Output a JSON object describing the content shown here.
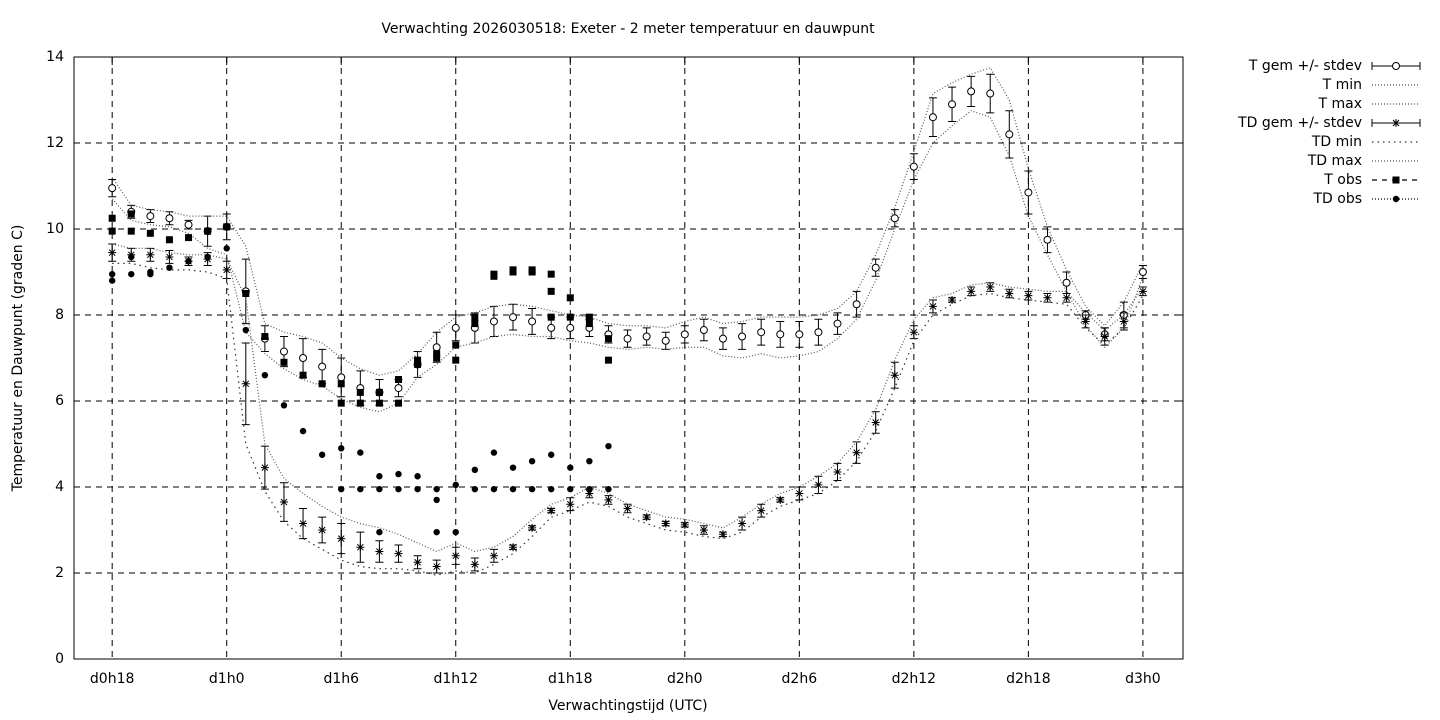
{
  "chart_data": {
    "type": "errorbar-line",
    "title": "Verwachting 2026030518: Exeter - 2 meter temperatuur en dauwpunt",
    "x_label": "Verwachtingstijd (UTC)",
    "y_label": "Temperatuur en Dauwpunt (graden C)",
    "xlim": [
      16,
      74.1
    ],
    "ylim": [
      0,
      14
    ],
    "xticks": [
      {
        "value": 18,
        "label": "d0h18"
      },
      {
        "value": 24,
        "label": "d1h0"
      },
      {
        "value": 30,
        "label": "d1h6"
      },
      {
        "value": 36,
        "label": "d1h12"
      },
      {
        "value": 42,
        "label": "d1h18"
      },
      {
        "value": 48,
        "label": "d2h0"
      },
      {
        "value": 54,
        "label": "d2h6"
      },
      {
        "value": 60,
        "label": "d2h12"
      },
      {
        "value": 66,
        "label": "d2h18"
      },
      {
        "value": 72,
        "label": "d3h0"
      }
    ],
    "yticks": [
      0,
      2,
      4,
      6,
      8,
      10,
      12,
      14
    ],
    "grid": true,
    "legend": "outside-top-right",
    "x": [
      18,
      19,
      20,
      21,
      22,
      23,
      24,
      25,
      26,
      27,
      28,
      29,
      30,
      31,
      32,
      33,
      34,
      35,
      36,
      37,
      38,
      39,
      40,
      41,
      42,
      43,
      44,
      45,
      46,
      47,
      48,
      49,
      50,
      51,
      52,
      53,
      54,
      55,
      56,
      57,
      58,
      59,
      60,
      61,
      62,
      63,
      64,
      65,
      66,
      67,
      68,
      69,
      70,
      71,
      72
    ],
    "series": [
      {
        "name": "T gem +/- stdev",
        "kind": "errorbar",
        "marker": "circle",
        "color": "#000000",
        "values": [
          10.95,
          10.4,
          10.3,
          10.25,
          10.1,
          9.95,
          10.05,
          8.55,
          7.45,
          7.15,
          7.0,
          6.8,
          6.55,
          6.3,
          6.2,
          6.3,
          6.85,
          7.25,
          7.7,
          7.7,
          7.85,
          7.95,
          7.85,
          7.7,
          7.7,
          7.7,
          7.55,
          7.45,
          7.5,
          7.4,
          7.55,
          7.65,
          7.45,
          7.5,
          7.6,
          7.55,
          7.55,
          7.6,
          7.8,
          8.25,
          9.1,
          10.25,
          11.45,
          12.6,
          12.9,
          13.2,
          13.15,
          12.2,
          10.85,
          9.75,
          8.75,
          8.0,
          7.55,
          8.0,
          9.0
        ],
        "errors": [
          0.2,
          0.15,
          0.15,
          0.15,
          0.1,
          0.35,
          0.3,
          0.75,
          0.3,
          0.35,
          0.45,
          0.4,
          0.45,
          0.4,
          0.3,
          0.2,
          0.3,
          0.35,
          0.3,
          0.35,
          0.35,
          0.3,
          0.3,
          0.25,
          0.25,
          0.2,
          0.2,
          0.2,
          0.2,
          0.2,
          0.2,
          0.25,
          0.25,
          0.3,
          0.3,
          0.3,
          0.3,
          0.3,
          0.25,
          0.3,
          0.2,
          0.2,
          0.3,
          0.45,
          0.4,
          0.35,
          0.45,
          0.55,
          0.5,
          0.3,
          0.25,
          0.1,
          0.15,
          0.3,
          0.15
        ]
      },
      {
        "name": "T min",
        "kind": "line",
        "line_style": "dotted",
        "color": "#555555",
        "values": [
          10.7,
          10.2,
          10.1,
          10.05,
          9.9,
          9.55,
          9.4,
          7.6,
          7.1,
          6.75,
          6.5,
          6.35,
          6.05,
          5.85,
          5.75,
          5.95,
          6.55,
          6.85,
          7.25,
          7.35,
          7.5,
          7.55,
          7.5,
          7.5,
          7.4,
          7.35,
          7.25,
          7.2,
          7.25,
          7.2,
          7.25,
          7.25,
          7.05,
          7.0,
          7.1,
          7.0,
          7.05,
          7.15,
          7.45,
          7.9,
          8.8,
          10.0,
          11.15,
          12.0,
          12.4,
          12.75,
          12.6,
          11.7,
          10.3,
          9.4,
          8.55,
          7.75,
          7.25,
          7.7,
          8.9
        ]
      },
      {
        "name": "T max",
        "kind": "line",
        "line_style": "dotted",
        "color": "#555555",
        "values": [
          11.2,
          10.55,
          10.45,
          10.4,
          10.3,
          10.3,
          10.3,
          9.6,
          7.8,
          7.6,
          7.5,
          7.35,
          7.0,
          6.75,
          6.6,
          6.7,
          7.1,
          7.6,
          7.95,
          8.05,
          8.2,
          8.25,
          8.2,
          8.1,
          8.0,
          7.95,
          7.8,
          7.75,
          7.75,
          7.7,
          7.85,
          7.95,
          7.8,
          7.85,
          7.95,
          7.95,
          7.95,
          8.0,
          8.15,
          8.55,
          9.4,
          10.5,
          11.8,
          13.15,
          13.4,
          13.6,
          13.75,
          13.0,
          11.4,
          10.05,
          9.05,
          8.2,
          7.75,
          8.3,
          9.2
        ]
      },
      {
        "name": "TD gem +/- stdev",
        "kind": "errorbar",
        "marker": "asterisk",
        "color": "#000000",
        "values": [
          9.45,
          9.4,
          9.4,
          9.35,
          9.25,
          9.3,
          9.05,
          6.4,
          4.45,
          3.65,
          3.15,
          3.0,
          2.8,
          2.6,
          2.5,
          2.45,
          2.25,
          2.15,
          2.4,
          2.2,
          2.4,
          2.6,
          3.05,
          3.45,
          3.6,
          3.85,
          3.7,
          3.5,
          3.3,
          3.15,
          3.12,
          3.0,
          2.9,
          3.15,
          3.45,
          3.7,
          3.85,
          4.05,
          4.35,
          4.8,
          5.5,
          6.6,
          7.6,
          8.2,
          8.35,
          8.55,
          8.65,
          8.5,
          8.45,
          8.4,
          8.4,
          7.85,
          7.5,
          7.85,
          8.55
        ],
        "errors": [
          0.2,
          0.15,
          0.15,
          0.15,
          0.1,
          0.15,
          0.2,
          0.95,
          0.5,
          0.45,
          0.35,
          0.3,
          0.35,
          0.35,
          0.25,
          0.2,
          0.15,
          0.15,
          0.2,
          0.15,
          0.15,
          0.05,
          0.05,
          0.05,
          0.15,
          0.1,
          0.1,
          0.1,
          0.05,
          0.05,
          0.05,
          0.1,
          0.05,
          0.15,
          0.15,
          0.05,
          0.15,
          0.2,
          0.2,
          0.25,
          0.25,
          0.3,
          0.15,
          0.15,
          0.05,
          0.1,
          0.1,
          0.1,
          0.1,
          0.1,
          0.1,
          0.15,
          0.2,
          0.2,
          0.1
        ]
      },
      {
        "name": "TD min",
        "kind": "line",
        "line_style": "sparse-dotted",
        "color": "#333333",
        "values": [
          9.2,
          9.2,
          9.1,
          9.05,
          9.05,
          9.0,
          8.85,
          5.0,
          3.9,
          3.2,
          2.8,
          2.55,
          2.3,
          2.15,
          2.1,
          2.1,
          2.05,
          1.95,
          2.05,
          2.0,
          2.2,
          2.45,
          2.85,
          3.3,
          3.45,
          3.65,
          3.55,
          3.3,
          3.15,
          3.0,
          2.95,
          2.85,
          2.8,
          2.95,
          3.3,
          3.55,
          3.7,
          3.85,
          4.15,
          4.6,
          5.3,
          6.3,
          7.4,
          8.0,
          8.25,
          8.45,
          8.5,
          8.4,
          8.35,
          8.3,
          8.25,
          7.7,
          7.3,
          7.7,
          8.45
        ]
      },
      {
        "name": "TD max",
        "kind": "line",
        "line_style": "dotted",
        "color": "#555555",
        "values": [
          9.65,
          9.55,
          9.55,
          9.45,
          9.4,
          9.4,
          9.3,
          8.4,
          5.0,
          4.2,
          3.85,
          3.55,
          3.3,
          3.15,
          3.05,
          2.9,
          2.7,
          2.5,
          2.7,
          2.5,
          2.6,
          2.85,
          3.25,
          3.6,
          3.75,
          4.0,
          3.85,
          3.6,
          3.45,
          3.3,
          3.25,
          3.15,
          3.05,
          3.3,
          3.6,
          3.85,
          4.0,
          4.25,
          4.55,
          5.05,
          5.8,
          6.95,
          7.9,
          8.4,
          8.5,
          8.7,
          8.75,
          8.65,
          8.6,
          8.55,
          8.55,
          8.05,
          7.65,
          8.0,
          8.65
        ]
      },
      {
        "name": "T obs",
        "kind": "points",
        "marker": "square",
        "line_style": "dashed",
        "color": "#000000",
        "x": [
          18,
          18,
          19,
          19,
          20,
          21,
          22,
          23,
          24,
          25,
          26,
          27,
          28,
          29,
          30,
          30,
          31,
          31,
          32,
          32,
          33,
          33,
          34,
          34,
          35,
          35,
          36,
          36,
          37,
          37,
          38,
          38,
          39,
          39,
          40,
          40,
          41,
          41,
          41,
          42,
          42,
          43,
          43,
          44,
          44
        ],
        "values": [
          10.25,
          9.95,
          10.35,
          9.95,
          9.9,
          9.75,
          9.8,
          9.95,
          10.05,
          8.5,
          7.5,
          6.9,
          6.6,
          6.4,
          6.4,
          5.95,
          6.2,
          5.95,
          6.2,
          5.95,
          6.5,
          5.95,
          6.85,
          6.95,
          7.0,
          7.1,
          7.3,
          6.95,
          7.95,
          7.8,
          8.9,
          8.95,
          9.0,
          9.05,
          9.0,
          9.05,
          8.95,
          8.55,
          7.95,
          8.4,
          7.95,
          7.95,
          7.8,
          7.45,
          6.95
        ]
      },
      {
        "name": "TD obs",
        "kind": "points",
        "marker": "dot",
        "line_style": "dotted",
        "color": "#000000",
        "x": [
          18,
          18,
          19,
          19,
          20,
          20,
          21,
          22,
          23,
          24,
          25,
          26,
          27,
          28,
          29,
          30,
          30,
          31,
          31,
          32,
          32,
          32,
          33,
          33,
          34,
          34,
          35,
          35,
          35,
          36,
          36,
          37,
          37,
          38,
          38,
          39,
          39,
          40,
          40,
          41,
          41,
          42,
          42,
          43,
          43,
          44,
          44
        ],
        "values": [
          8.95,
          8.8,
          8.95,
          9.35,
          8.95,
          9.0,
          9.1,
          9.25,
          9.35,
          9.55,
          7.65,
          6.6,
          5.9,
          5.3,
          4.75,
          4.9,
          3.95,
          4.8,
          3.95,
          4.25,
          3.95,
          2.95,
          4.3,
          3.95,
          4.25,
          3.95,
          3.95,
          3.7,
          2.95,
          4.05,
          2.95,
          4.4,
          3.95,
          4.8,
          3.95,
          4.45,
          3.95,
          4.6,
          3.95,
          4.75,
          3.95,
          4.45,
          3.95,
          4.6,
          3.95,
          4.95,
          3.95
        ]
      }
    ]
  }
}
